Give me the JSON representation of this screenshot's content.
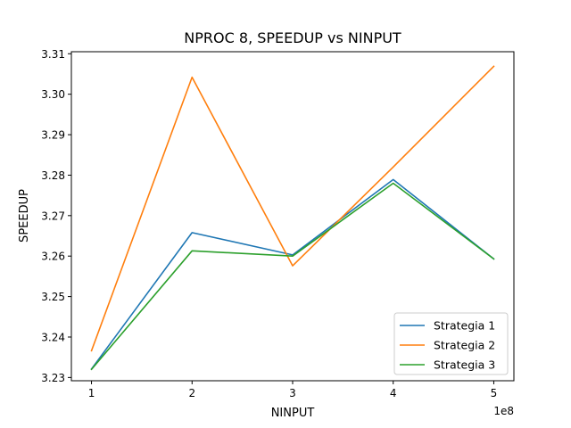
{
  "chart_data": {
    "type": "line",
    "title": "NPROC 8, SPEEDUP vs NINPUT",
    "xlabel": "NINPUT",
    "ylabel": "SPEEDUP",
    "x_offset_label": "1e8",
    "x": [
      1,
      2,
      3,
      4,
      5
    ],
    "x_tick_labels": [
      "1",
      "2",
      "3",
      "4",
      "5"
    ],
    "y_tick_labels": [
      "3.23",
      "3.24",
      "3.25",
      "3.26",
      "3.27",
      "3.28",
      "3.29",
      "3.30",
      "3.31"
    ],
    "y_ticks": [
      3.23,
      3.24,
      3.25,
      3.26,
      3.27,
      3.28,
      3.29,
      3.3,
      3.31
    ],
    "xlim": [
      0.8,
      5.2
    ],
    "ylim": [
      3.2292,
      3.3105
    ],
    "grid": false,
    "legend_position": "bottom-right",
    "series": [
      {
        "name": "Strategia 1",
        "color": "#1f77b4",
        "values": [
          3.2321,
          3.2658,
          3.2603,
          3.2789,
          3.2593
        ]
      },
      {
        "name": "Strategia 2",
        "color": "#ff7f0e",
        "values": [
          3.2366,
          3.3042,
          3.2576,
          3.282,
          3.3069
        ]
      },
      {
        "name": "Strategia 3",
        "color": "#2ca02c",
        "values": [
          3.232,
          3.2613,
          3.26,
          3.278,
          3.2593
        ]
      }
    ]
  }
}
